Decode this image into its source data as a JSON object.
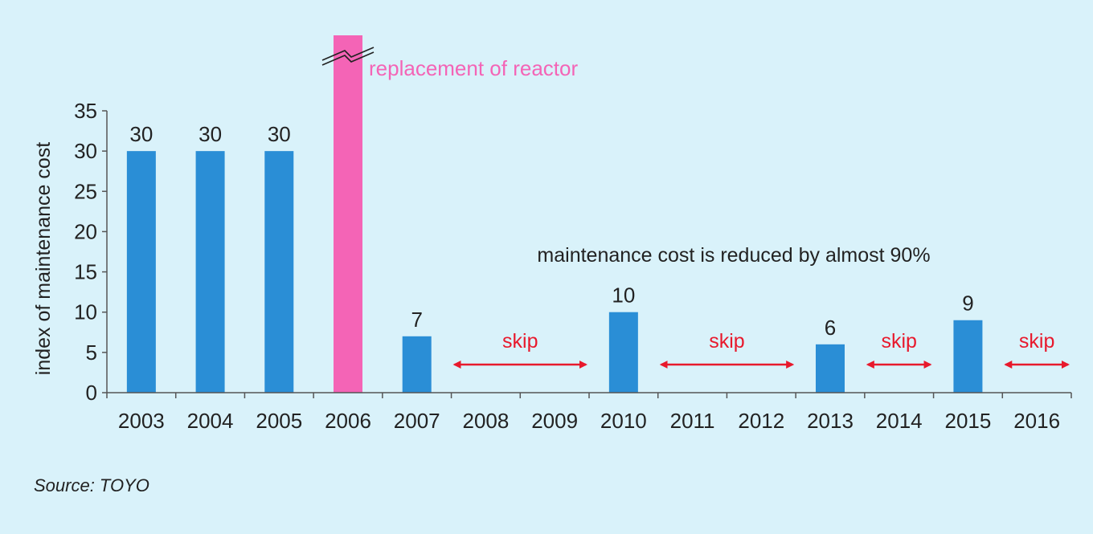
{
  "chart_data": {
    "type": "bar",
    "categories": [
      "2003",
      "2004",
      "2005",
      "2006",
      "2007",
      "2008",
      "2009",
      "2010",
      "2011",
      "2012",
      "2013",
      "2014",
      "2015",
      "2016"
    ],
    "values": [
      30,
      30,
      30,
      null,
      7,
      null,
      null,
      10,
      null,
      null,
      6,
      null,
      9,
      null
    ],
    "data_labels": [
      "30",
      "30",
      "30",
      "",
      "7",
      "",
      "",
      "10",
      "",
      "",
      "6",
      "",
      "9",
      ""
    ],
    "ylabel": "index of maintenance cost",
    "ylim": [
      0,
      35
    ],
    "yticks": [
      0,
      5,
      10,
      15,
      20,
      25,
      30,
      35
    ],
    "grid": false,
    "colors": {
      "bar": "#2a8ed6",
      "highlight": "#f464b6",
      "arrow": "#e8192c",
      "axis": "#555555",
      "text": "#222222"
    },
    "highlight": {
      "category": "2006",
      "label": "replacement of reactor",
      "exceeds_axis": true
    },
    "annotation": "maintenance cost is reduced by almost 90%",
    "skips": [
      {
        "label": "skip",
        "from": "2008",
        "to": "2009"
      },
      {
        "label": "skip",
        "from": "2011",
        "to": "2012"
      },
      {
        "label": "skip",
        "from": "2014",
        "to": "2014"
      },
      {
        "label": "skip",
        "from": "2016",
        "to": "2016"
      }
    ]
  },
  "source": "Source: TOYO"
}
